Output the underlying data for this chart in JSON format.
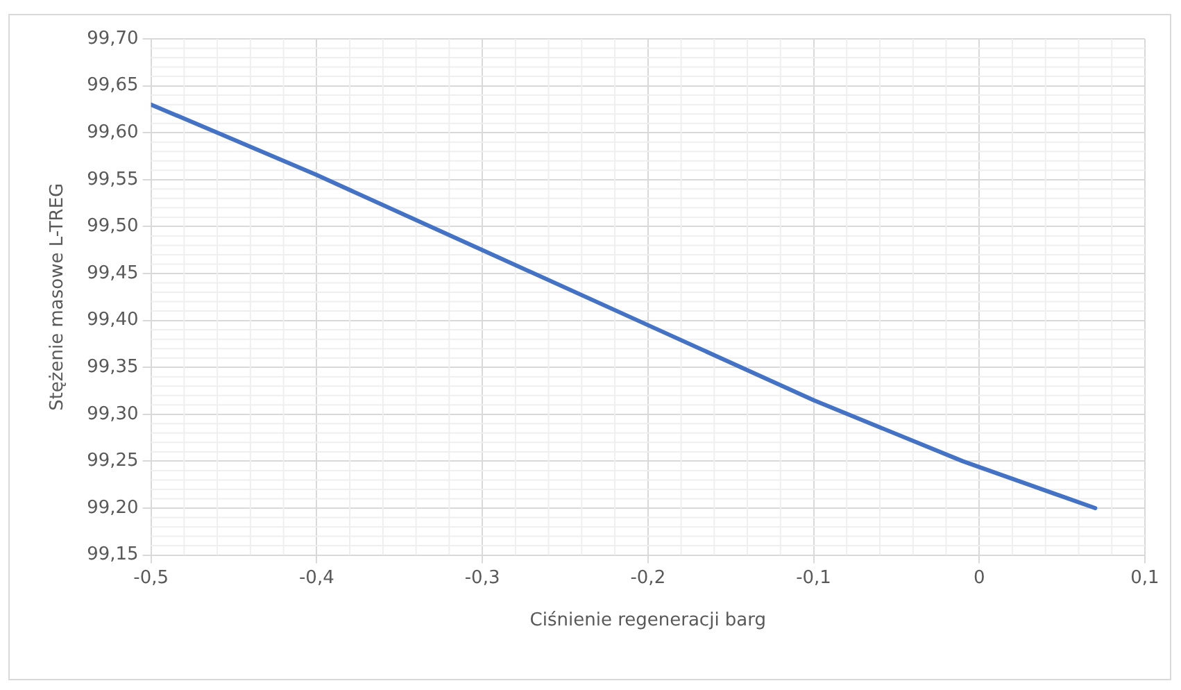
{
  "chart_data": {
    "type": "line",
    "xlabel": "Ciśnienie regeneracji barg",
    "ylabel": "Stężenie masowe L-TREG",
    "x": [
      -0.5,
      -0.4,
      -0.3,
      -0.2,
      -0.1,
      -0.01,
      0.07
    ],
    "series": [
      {
        "color": "#4472c4",
        "values": [
          99.63,
          99.555,
          99.475,
          99.395,
          99.315,
          99.25,
          99.2
        ]
      }
    ],
    "xlim": [
      -0.5,
      0.1
    ],
    "xticks": [
      {
        "value": -0.5,
        "label": "-0,5"
      },
      {
        "value": -0.4,
        "label": "-0,4"
      },
      {
        "value": -0.3,
        "label": "-0,3"
      },
      {
        "value": -0.2,
        "label": "-0,2"
      },
      {
        "value": -0.1,
        "label": "-0,1"
      },
      0,
      {
        "value": 0.1,
        "label": "0,1"
      }
    ],
    "ylim": [
      99.15,
      99.7
    ],
    "yticks": [
      {
        "value": 99.15,
        "label": "99,15"
      },
      {
        "value": 99.2,
        "label": "99,20"
      },
      {
        "value": 99.25,
        "label": "99,25"
      },
      {
        "value": 99.3,
        "label": "99,30"
      },
      {
        "value": 99.35,
        "label": "99,35"
      },
      {
        "value": 99.4,
        "label": "99,40"
      },
      {
        "value": 99.45,
        "label": "99,45"
      },
      {
        "value": 99.5,
        "label": "99,50"
      },
      {
        "value": 99.55,
        "label": "99,55"
      },
      {
        "value": 99.6,
        "label": "99,60"
      },
      {
        "value": 99.65,
        "label": "99,65"
      },
      {
        "value": 99.7,
        "label": "99,70"
      }
    ],
    "grid": true,
    "legend": false,
    "marker": "none",
    "line_style": "solid"
  }
}
